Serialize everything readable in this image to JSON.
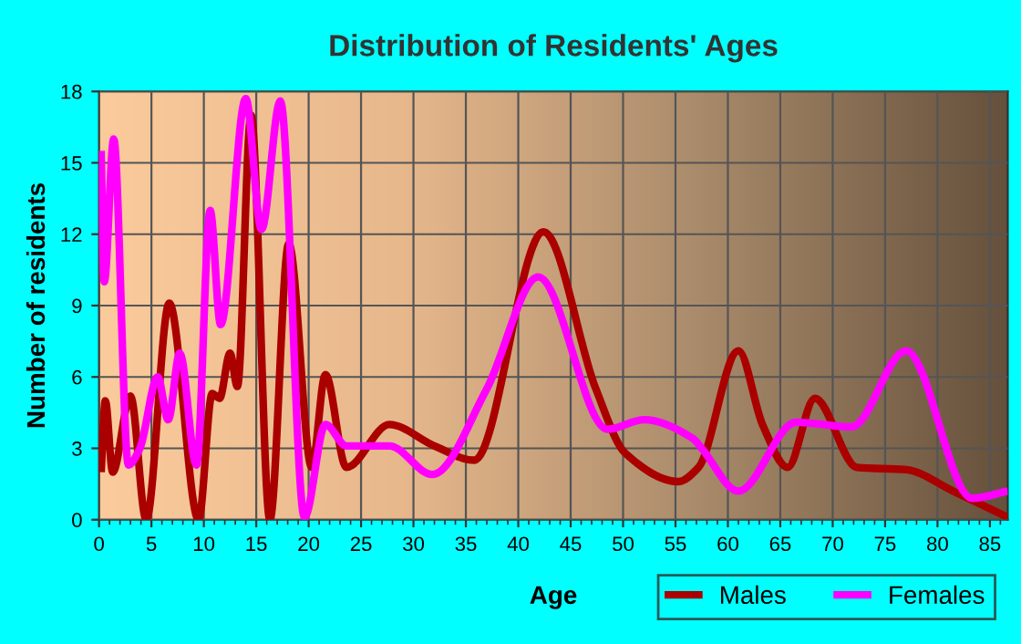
{
  "chart_data": {
    "type": "line",
    "title": "Distribution of Residents' Ages",
    "xlabel": "Age",
    "ylabel": "Number of residents",
    "xlim": [
      0,
      86.7
    ],
    "xticks": [
      0,
      5,
      10,
      15,
      20,
      25,
      30,
      35,
      40,
      45,
      50,
      55,
      60,
      65,
      70,
      75,
      80,
      85
    ],
    "ylim": [
      0,
      18
    ],
    "yticks": [
      0,
      3,
      6,
      9,
      12,
      15,
      18
    ],
    "grid": true,
    "legend": "bottom right",
    "marker": "none",
    "line_style": "solid",
    "series": [
      {
        "name": "Males",
        "color": "#aa0000",
        "x": [
          0.2,
          0.6,
          1.3,
          3,
          4.5,
          6.7,
          9.5,
          10.8,
          11.5,
          12.5,
          13.2,
          14.5,
          16.3,
          18.1,
          20.3,
          21.6,
          23.6,
          27.7,
          32,
          35.8,
          42.4,
          47.4,
          50.2,
          55.3,
          57.2,
          61,
          63.3,
          65.7,
          68.3,
          72.3,
          77,
          81.5,
          86.7
        ],
        "values": [
          2,
          5,
          2,
          5.2,
          0,
          9.1,
          0,
          5.3,
          5.1,
          7,
          5.6,
          17,
          0,
          11.6,
          2.2,
          6.1,
          2.2,
          4,
          3.1,
          2.5,
          12.1,
          5.5,
          2.8,
          1.6,
          2.2,
          7.1,
          4,
          2.2,
          5.1,
          2.2,
          2.1,
          1.2,
          0.1
        ]
      },
      {
        "name": "Females",
        "color": "#ff00ff",
        "x": [
          0.2,
          0.5,
          1.4,
          2.8,
          3.9,
          5.6,
          6.6,
          7.7,
          9.3,
          10.6,
          11.6,
          14,
          15.5,
          17.3,
          19.6,
          21.6,
          23.6,
          27.7,
          31.8,
          37,
          41.9,
          48.5,
          52,
          56.7,
          57.5,
          61,
          66.5,
          71.8,
          77,
          83.3,
          86.7
        ],
        "values": [
          15.5,
          10,
          16,
          2.3,
          3,
          6,
          4.2,
          7,
          2.3,
          13,
          8.2,
          17.7,
          12.2,
          17.6,
          0.1,
          4,
          3.1,
          3.1,
          1.9,
          5.5,
          10.2,
          3.8,
          4.2,
          3.4,
          3,
          1.2,
          4.1,
          3.9,
          7.1,
          0.9,
          1.2
        ]
      }
    ]
  }
}
